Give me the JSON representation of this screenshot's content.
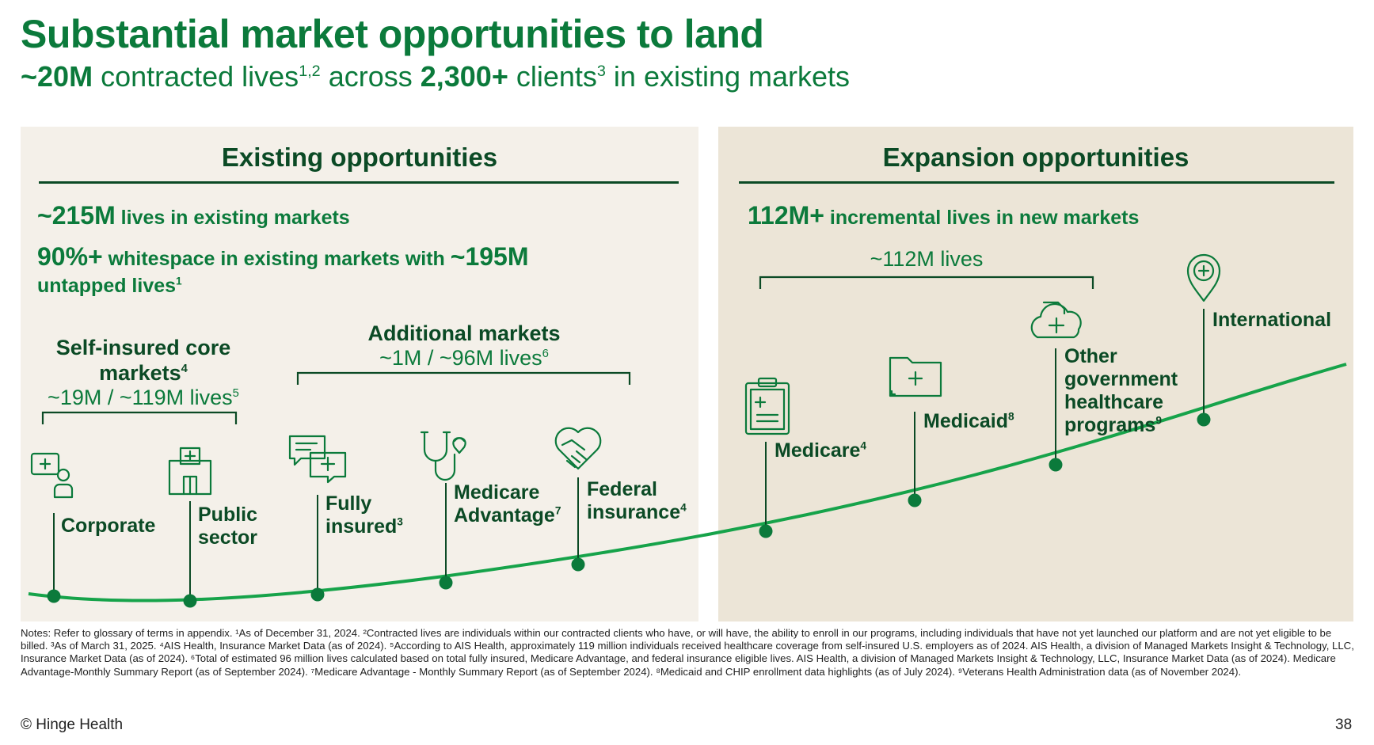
{
  "title": "Substantial market opportunities to land",
  "subtitle": {
    "part1_bold": "~20M",
    "part2": " contracted lives",
    "sup1": "1,2",
    "part3": " across ",
    "part4_bold": "2,300+",
    "part5": " clients",
    "sup2": "3",
    "part6": " in existing markets"
  },
  "existing": {
    "heading": "Existing opportunities",
    "stat1_big": "~215M",
    "stat1_text": " lives in existing markets",
    "stat2_big": "90%+",
    "stat2_text": " whitespace in existing markets with ",
    "stat2_big2": "~195M",
    "stat2_line2": "untapped lives",
    "stat2_sup": "1",
    "group1_title_l1": "Self-insured core",
    "group1_title_l2": "markets",
    "group1_sup": "4",
    "group1_sub": "~19M / ~119M lives",
    "group1_sub_sup": "5",
    "group2_title": "Additional markets",
    "group2_sub": "~1M / ~96M lives",
    "group2_sub_sup": "6",
    "items": [
      {
        "l1": "Corporate",
        "l2": "",
        "sup": "",
        "icon": "corporate-icon"
      },
      {
        "l1": "Public",
        "l2": "sector",
        "sup": "",
        "icon": "building-icon"
      },
      {
        "l1": "Fully",
        "l2": "insured",
        "sup": "3",
        "icon": "chat-bubbles-icon"
      },
      {
        "l1": "Medicare",
        "l2": "Advantage",
        "sup": "7",
        "icon": "stethoscope-icon"
      },
      {
        "l1": "Federal",
        "l2": "insurance",
        "sup": "4",
        "icon": "handshake-heart-icon"
      }
    ]
  },
  "expansion": {
    "heading": "Expansion opportunities",
    "stat_big": "112M+",
    "stat_text": " incremental lives in new markets",
    "bracket_label": "~112M lives",
    "items": [
      {
        "l1": "Medicare",
        "l2": "",
        "l3": "",
        "l4": "",
        "sup": "4",
        "icon": "clipboard-icon"
      },
      {
        "l1": "Medicaid",
        "l2": "",
        "l3": "",
        "l4": "",
        "sup": "8",
        "icon": "folder-icon"
      },
      {
        "l1": "Other",
        "l2": "government",
        "l3": "healthcare",
        "l4": "programs",
        "sup": "9",
        "icon": "cloud-document-icon"
      },
      {
        "l1": "International",
        "l2": "",
        "l3": "",
        "l4": "",
        "sup": "",
        "icon": "location-pin-icon"
      }
    ]
  },
  "notes": "Notes: Refer to glossary of terms in appendix. ¹As of December 31, 2024. ²Contracted lives are individuals within our contracted clients who have, or will have, the ability to enroll in our programs, including individuals that have not yet launched our platform and are not yet eligible to be billed. ³As of March 31, 2025. ⁴AIS Health, Insurance Market Data (as of 2024). ⁵According to AIS Health, approximately 119 million individuals received healthcare coverage from self-insured U.S. employers as of 2024. AIS Health, a division of Managed Markets Insight & Technology, LLC, Insurance Market Data (as of 2024). ⁶Total of estimated 96 million lives calculated based on total fully insured, Medicare Advantage, and federal insurance eligible lives. AIS Health, a division of Managed Markets Insight & Technology, LLC, Insurance Market Data (as of 2024). Medicare Advantage-Monthly Summary Report (as of September 2024). ⁷Medicare Advantage - Monthly Summary Report (as of September 2024). ⁸Medicaid and CHIP enrollment data highlights (as of July 2024). ⁹Veterans Health Administration data (as of November 2024).",
  "footer": {
    "copyright": "© Hinge Health",
    "page": "38"
  },
  "colors": {
    "brand_green": "#0b7a3b",
    "dark_green": "#0b4a25",
    "panel_left": "#f4f0e9",
    "panel_right": "#ece5d7",
    "curve": "#16a34a"
  }
}
